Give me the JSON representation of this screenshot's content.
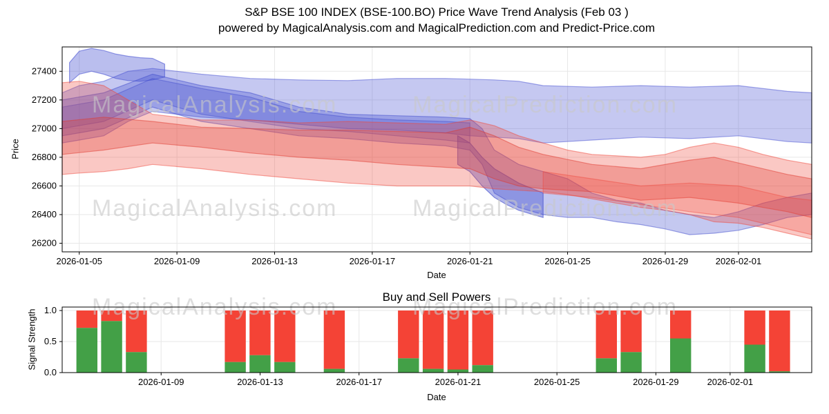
{
  "watermarks": {
    "texts": [
      "MagicalAnalysis.com",
      "MagicalPrediction.com"
    ],
    "color": "#c8c8c8"
  },
  "chart_data": [
    {
      "type": "area",
      "title": "S&P BSE 100 INDEX (BSE-100.BO) Price Wave Trend Analysis (Feb 03 )",
      "subtitle": "powered by MagicalAnalysis.com and MagicalPrediction.com and Predict-Price.com",
      "xlabel": "Date",
      "ylabel": "Price",
      "x_unit": "days since 2026-01-04",
      "xlim": [
        0.3,
        31
      ],
      "ylim": [
        26140,
        27570
      ],
      "grid": true,
      "yticks": [
        26200,
        26400,
        26600,
        26800,
        27000,
        27200,
        27400
      ],
      "xticks": [
        {
          "day": 1,
          "label": "2026-01-05"
        },
        {
          "day": 5,
          "label": "2026-01-09"
        },
        {
          "day": 9,
          "label": "2026-01-13"
        },
        {
          "day": 13,
          "label": "2026-01-17"
        },
        {
          "day": 17,
          "label": "2026-01-21"
        },
        {
          "day": 21,
          "label": "2026-01-25"
        },
        {
          "day": 25,
          "label": "2026-01-29"
        },
        {
          "day": 28,
          "label": "2026-02-01"
        }
      ],
      "bands": [
        {
          "name": "blue-upper-band",
          "color": "#4a55d2",
          "opacity": 0.32,
          "x": [
            0.3,
            1,
            2,
            3,
            4,
            5,
            6,
            8,
            10,
            12,
            14,
            16,
            17,
            18,
            19,
            20,
            22,
            24,
            26,
            28,
            30,
            31
          ],
          "upper": [
            27250,
            27300,
            27330,
            27400,
            27420,
            27400,
            27380,
            27350,
            27340,
            27335,
            27350,
            27350,
            27345,
            27340,
            27330,
            27300,
            27290,
            27300,
            27290,
            27300,
            27260,
            27250
          ],
          "lower": [
            26900,
            26920,
            26950,
            27050,
            27120,
            27100,
            27080,
            27060,
            27030,
            27000,
            26990,
            26970,
            26950,
            26940,
            26930,
            26900,
            26920,
            26940,
            26930,
            26950,
            26910,
            26900
          ]
        },
        {
          "name": "blue-peak-blob",
          "color": "#4a55d2",
          "opacity": 0.38,
          "x": [
            0.6,
            1,
            1.5,
            2,
            2.5,
            3,
            3.5,
            4,
            4.5
          ],
          "upper": [
            27460,
            27540,
            27560,
            27545,
            27520,
            27505,
            27495,
            27490,
            27450
          ],
          "lower": [
            27320,
            27380,
            27400,
            27380,
            27350,
            27335,
            27330,
            27340,
            27360
          ]
        },
        {
          "name": "blue-trend-band",
          "color": "#3d49cc",
          "opacity": 0.3,
          "x": [
            0.3,
            2,
            4,
            6,
            8,
            10,
            12,
            14,
            16,
            17,
            17.5,
            18,
            19,
            20,
            21,
            22,
            23,
            24,
            25,
            26,
            27,
            28,
            29,
            30,
            31
          ],
          "upper": [
            27200,
            27250,
            27380,
            27300,
            27250,
            27150,
            27100,
            27090,
            27080,
            27070,
            27000,
            26850,
            26750,
            26700,
            26650,
            26550,
            26500,
            26480,
            26430,
            26400,
            26380,
            26420,
            26480,
            26520,
            26550
          ],
          "lower": [
            26950,
            27000,
            27150,
            27050,
            27000,
            26950,
            26930,
            26900,
            26880,
            26850,
            26750,
            26550,
            26450,
            26400,
            26380,
            26380,
            26350,
            26330,
            26300,
            26260,
            26270,
            26290,
            26330,
            26380,
            26400
          ]
        },
        {
          "name": "blue-core-band",
          "color": "#3d49cc",
          "opacity": 0.25,
          "x": [
            0.3,
            2,
            4,
            6,
            8,
            10,
            12,
            14,
            16,
            17
          ],
          "upper": [
            27150,
            27200,
            27350,
            27280,
            27220,
            27120,
            27080,
            27060,
            27050,
            27040
          ],
          "lower": [
            27000,
            27050,
            27200,
            27100,
            27050,
            27000,
            26980,
            26950,
            26920,
            26900
          ]
        },
        {
          "name": "blue-dip-core",
          "color": "#3d49cc",
          "opacity": 0.4,
          "x": [
            16.5,
            17,
            17.5,
            18,
            18.5,
            19,
            20
          ],
          "upper": [
            26950,
            26900,
            26800,
            26720,
            26670,
            26620,
            26550
          ],
          "lower": [
            26750,
            26700,
            26600,
            26520,
            26470,
            26430,
            26380
          ]
        },
        {
          "name": "red-outer-band",
          "color": "#f0483c",
          "opacity": 0.3,
          "x": [
            0.3,
            1,
            2,
            3,
            4,
            6,
            8,
            10,
            12,
            14,
            16,
            17,
            18,
            19,
            20,
            21,
            22,
            24,
            25,
            26,
            27,
            28,
            29,
            30,
            31
          ],
          "upper": [
            27320,
            27330,
            27300,
            27200,
            27100,
            27060,
            27060,
            27040,
            27050,
            27040,
            27030,
            27060,
            27020,
            26950,
            26900,
            26850,
            26820,
            26800,
            26820,
            26870,
            26900,
            26870,
            26820,
            26780,
            26750
          ],
          "lower": [
            26680,
            26690,
            26700,
            26720,
            26750,
            26720,
            26680,
            26650,
            26620,
            26600,
            26600,
            26600,
            26580,
            26570,
            26560,
            26540,
            26510,
            26450,
            26430,
            26400,
            26350,
            26340,
            26310,
            26270,
            26230
          ]
        },
        {
          "name": "red-core-band",
          "color": "#e03a30",
          "opacity": 0.3,
          "x": [
            0.3,
            2,
            4,
            6,
            8,
            10,
            12,
            14,
            16,
            17,
            18,
            19,
            20,
            22,
            24,
            26,
            27,
            28,
            30,
            31
          ],
          "upper": [
            27050,
            27080,
            27050,
            27010,
            27000,
            26990,
            26990,
            26980,
            26970,
            27010,
            26950,
            26870,
            26820,
            26750,
            26720,
            26780,
            26800,
            26760,
            26680,
            26650
          ],
          "lower": [
            26820,
            26850,
            26900,
            26870,
            26830,
            26800,
            26780,
            26750,
            26730,
            26720,
            26650,
            26600,
            26580,
            26560,
            26500,
            26520,
            26500,
            26480,
            26420,
            26380
          ]
        },
        {
          "name": "red-lower-band",
          "color": "#f0483c",
          "opacity": 0.25,
          "x": [
            20,
            22,
            24,
            26,
            28,
            29,
            30,
            31
          ],
          "upper": [
            26700,
            26650,
            26600,
            26620,
            26600,
            26560,
            26520,
            26500
          ],
          "lower": [
            26550,
            26520,
            26470,
            26420,
            26380,
            26340,
            26300,
            26260
          ]
        }
      ]
    },
    {
      "type": "bar",
      "title": "Buy and Sell Powers",
      "xlabel": "Date",
      "ylabel": "Signal Strength",
      "stacked": true,
      "xlim": [
        1.0,
        31.3
      ],
      "ylim": [
        0,
        1.056
      ],
      "grid": true,
      "bar_width_days": 0.85,
      "yticks": [
        {
          "value": 0,
          "label": "0.0"
        },
        {
          "value": 0.5,
          "label": "0.5"
        },
        {
          "value": 1,
          "label": "1.0"
        }
      ],
      "xticks": [
        {
          "day": 5,
          "label": "2026-01-09"
        },
        {
          "day": 9,
          "label": "2026-01-13"
        },
        {
          "day": 13,
          "label": "2026-01-17"
        },
        {
          "day": 17,
          "label": "2026-01-21"
        },
        {
          "day": 21,
          "label": "2026-01-25"
        },
        {
          "day": 25,
          "label": "2026-01-29"
        },
        {
          "day": 28,
          "label": "2026-02-01"
        }
      ],
      "series": [
        {
          "name": "Buy",
          "color": "#43a047"
        },
        {
          "name": "Sell",
          "color": "#f44336"
        }
      ],
      "bars": [
        {
          "date": "2026-01-06",
          "day": 2,
          "buy": 0.72,
          "sell": 0.28
        },
        {
          "date": "2026-01-07",
          "day": 3,
          "buy": 0.83,
          "sell": 0.17
        },
        {
          "date": "2026-01-08",
          "day": 4,
          "buy": 0.33,
          "sell": 0.67
        },
        {
          "date": "2026-01-12",
          "day": 8,
          "buy": 0.17,
          "sell": 0.83
        },
        {
          "date": "2026-01-13",
          "day": 9,
          "buy": 0.28,
          "sell": 0.72
        },
        {
          "date": "2026-01-14",
          "day": 10,
          "buy": 0.17,
          "sell": 0.83
        },
        {
          "date": "2026-01-16",
          "day": 12,
          "buy": 0.06,
          "sell": 0.94
        },
        {
          "date": "2026-01-19",
          "day": 15,
          "buy": 0.23,
          "sell": 0.77
        },
        {
          "date": "2026-01-20",
          "day": 16,
          "buy": 0.06,
          "sell": 0.94
        },
        {
          "date": "2026-01-21",
          "day": 17,
          "buy": 0.05,
          "sell": 0.95
        },
        {
          "date": "2026-01-22",
          "day": 18,
          "buy": 0.12,
          "sell": 0.88
        },
        {
          "date": "2026-01-27",
          "day": 23,
          "buy": 0.23,
          "sell": 0.77
        },
        {
          "date": "2026-01-28",
          "day": 24,
          "buy": 0.33,
          "sell": 0.67
        },
        {
          "date": "2026-01-30",
          "day": 26,
          "buy": 0.55,
          "sell": 0.45
        },
        {
          "date": "2026-02-02",
          "day": 29,
          "buy": 0.45,
          "sell": 0.55
        },
        {
          "date": "2026-02-03",
          "day": 30,
          "buy": 0.02,
          "sell": 0.98
        }
      ]
    }
  ]
}
